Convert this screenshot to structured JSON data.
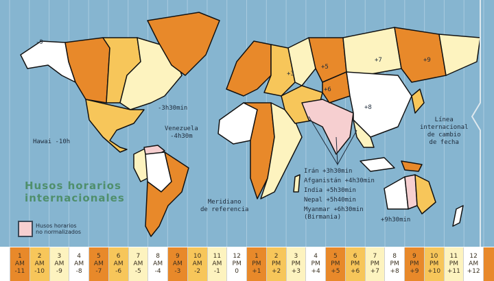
{
  "title": [
    "Husos horarios",
    "internacionales"
  ],
  "legend": {
    "label": [
      "Husos horarios",
      "no normalizados"
    ],
    "color": "#f6cfd0"
  },
  "colors": {
    "ocean": "#86b5d0",
    "orange": "#e8892a",
    "gold": "#f7c65a",
    "cream": "#fdf3bf",
    "white": "#ffffff",
    "pink": "#f6cfd0"
  },
  "map_labels": {
    "minus9": "-9",
    "plus3": "+3",
    "plus5": "+5",
    "plus6": "+6",
    "plus7": "+7",
    "plus8": "+8",
    "plus9": "+9",
    "newfoundland": "-3h30min",
    "venezuela": [
      "Venezuela",
      "-4h30m"
    ],
    "hawaii": "Hawai -10h",
    "meridian": [
      "Meridiano",
      "de referencia"
    ],
    "dateline": [
      "Línea",
      "internacional",
      "de cambio",
      "de fecha"
    ],
    "australia_central": "+9h30min",
    "exceptions": [
      "Irán +3h30min",
      "Afganistán +4h30min",
      "India +5h30min",
      "Nepal +5h40min",
      "Myanmar +6h30min",
      "(Birmania)"
    ]
  },
  "time_strip": [
    {
      "hour": "1",
      "ampm": "AM",
      "offset": "-11",
      "color": "orange"
    },
    {
      "hour": "2",
      "ampm": "AM",
      "offset": "-10",
      "color": "gold"
    },
    {
      "hour": "3",
      "ampm": "AM",
      "offset": "-9",
      "color": "cream"
    },
    {
      "hour": "4",
      "ampm": "AM",
      "offset": "-8",
      "color": "white"
    },
    {
      "hour": "5",
      "ampm": "AM",
      "offset": "-7",
      "color": "orange"
    },
    {
      "hour": "6",
      "ampm": "AM",
      "offset": "-6",
      "color": "gold"
    },
    {
      "hour": "7",
      "ampm": "AM",
      "offset": "-5",
      "color": "cream"
    },
    {
      "hour": "8",
      "ampm": "AM",
      "offset": "-4",
      "color": "white"
    },
    {
      "hour": "9",
      "ampm": "AM",
      "offset": "-3",
      "color": "orange"
    },
    {
      "hour": "10",
      "ampm": "AM",
      "offset": "-2",
      "color": "gold"
    },
    {
      "hour": "11",
      "ampm": "AM",
      "offset": "-1",
      "color": "cream"
    },
    {
      "hour": "12",
      "ampm": "PM",
      "offset": "0",
      "color": "white"
    },
    {
      "hour": "1",
      "ampm": "PM",
      "offset": "+1",
      "color": "orange"
    },
    {
      "hour": "2",
      "ampm": "PM",
      "offset": "+2",
      "color": "gold"
    },
    {
      "hour": "3",
      "ampm": "PM",
      "offset": "+3",
      "color": "cream"
    },
    {
      "hour": "4",
      "ampm": "PM",
      "offset": "+4",
      "color": "white"
    },
    {
      "hour": "5",
      "ampm": "PM",
      "offset": "+5",
      "color": "orange"
    },
    {
      "hour": "6",
      "ampm": "PM",
      "offset": "+6",
      "color": "gold"
    },
    {
      "hour": "7",
      "ampm": "PM",
      "offset": "+7",
      "color": "cream"
    },
    {
      "hour": "8",
      "ampm": "PM",
      "offset": "+8",
      "color": "white"
    },
    {
      "hour": "9",
      "ampm": "PM",
      "offset": "+9",
      "color": "orange"
    },
    {
      "hour": "10",
      "ampm": "PM",
      "offset": "+10",
      "color": "gold"
    },
    {
      "hour": "11",
      "ampm": "PM",
      "offset": "+11",
      "color": "cream"
    },
    {
      "hour": "12",
      "ampm": "AM",
      "offset": "+12",
      "color": "white"
    }
  ]
}
